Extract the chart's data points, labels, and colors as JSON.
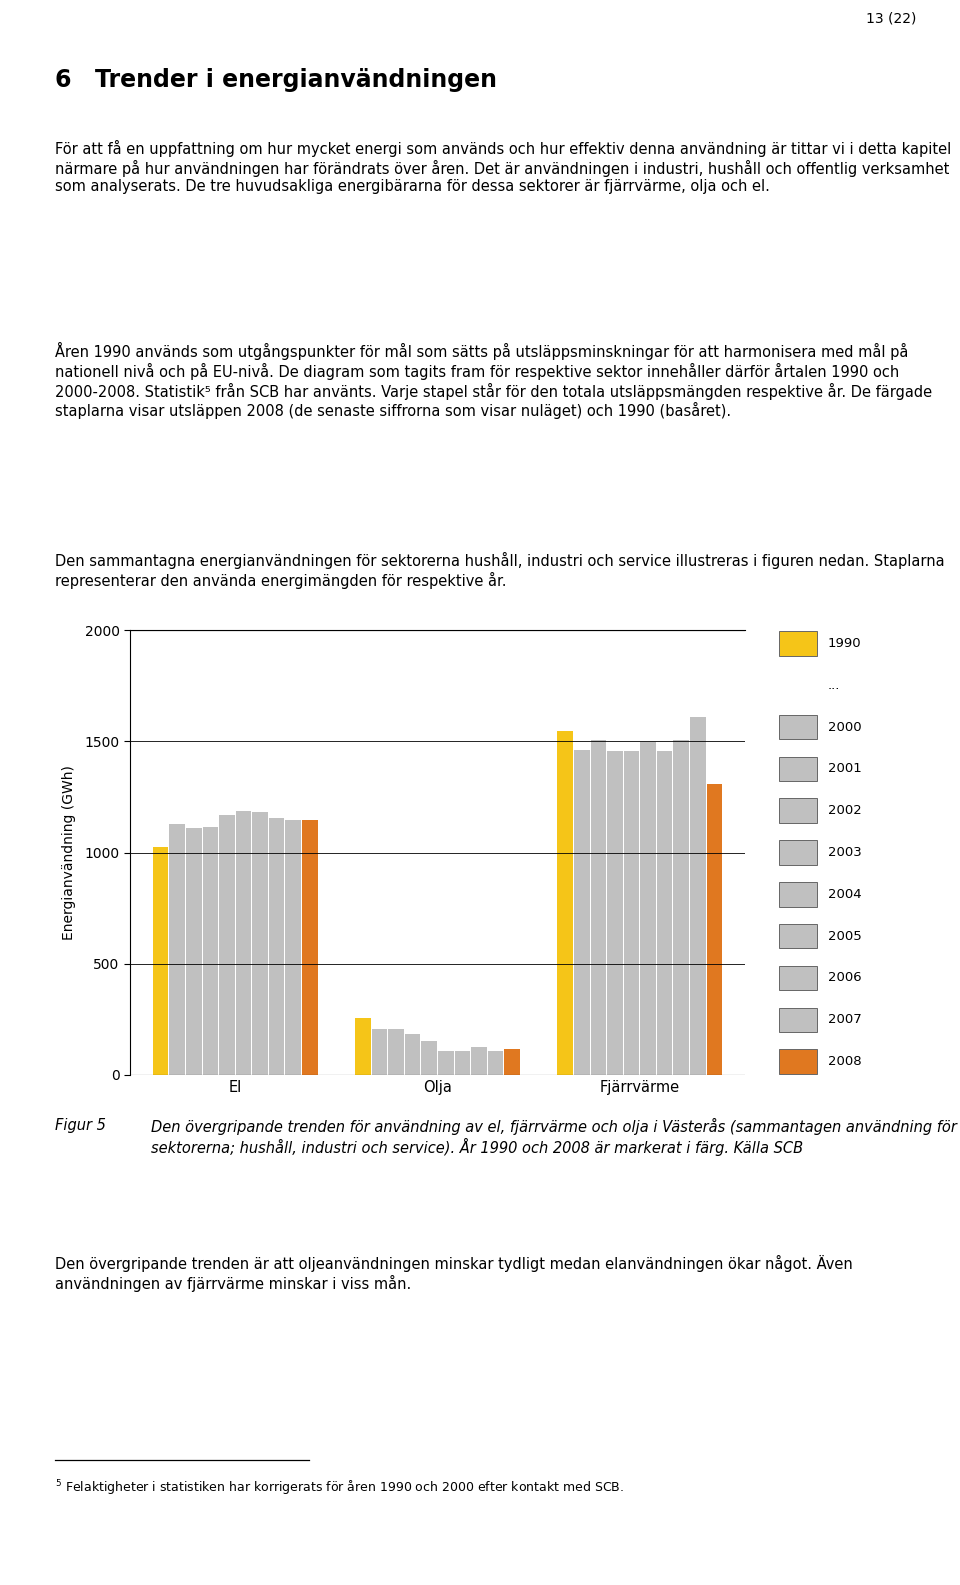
{
  "ylabel": "Energianvändning (GWh)",
  "ylim": [
    0,
    2000
  ],
  "yticks": [
    0,
    500,
    1000,
    1500,
    2000
  ],
  "groups": [
    "El",
    "Olja",
    "Fjärrvärme"
  ],
  "years": [
    "1990",
    "2000",
    "2001",
    "2002",
    "2003",
    "2004",
    "2005",
    "2006",
    "2007",
    "2008"
  ],
  "values": {
    "El": [
      1025,
      1130,
      1110,
      1115,
      1170,
      1185,
      1180,
      1155,
      1145,
      1145
    ],
    "Olja": [
      255,
      205,
      205,
      185,
      155,
      110,
      110,
      125,
      110,
      115
    ],
    "Fjärrvärme": [
      1545,
      1460,
      1505,
      1455,
      1455,
      1495,
      1455,
      1505,
      1610,
      1310
    ]
  },
  "colors": {
    "1990": "#F5C518",
    "2000": "#C0C0C0",
    "2001": "#C0C0C0",
    "2002": "#C0C0C0",
    "2003": "#C0C0C0",
    "2004": "#C0C0C0",
    "2005": "#C0C0C0",
    "2006": "#C0C0C0",
    "2007": "#C0C0C0",
    "2008": "#E07820"
  },
  "legend_entries": [
    "1990",
    "...",
    "2000",
    "2001",
    "2002",
    "2003",
    "2004",
    "2005",
    "2006",
    "2007",
    "2008"
  ],
  "legend_colors": [
    "#F5C518",
    null,
    "#C0C0C0",
    "#C0C0C0",
    "#C0C0C0",
    "#C0C0C0",
    "#C0C0C0",
    "#C0C0C0",
    "#C0C0C0",
    "#C0C0C0",
    "#E07820"
  ],
  "page_number": "13 (22)",
  "heading_number": "6",
  "heading_text": "Trender i energianvändningen",
  "body_text_1": "För att få en uppfattning om hur mycket energi som används och hur effektiv denna användning är tittar vi i detta kapitel närmare på hur användningen har förändrats över åren. Det är användningen i industri, hushåll och offentlig verksamhet som analyserats. De tre huvudsakliga energibärarna för dessa sektorer är fjärrvärme, olja och el.",
  "body_text_2": "Åren 1990 används som utgångspunkter för mål som sätts på utsläppsminskningar för att harmonisera med mål på nationell nivå och på EU-nivå. De diagram som tagits fram för respektive sektor innehåller därför årtalen 1990 och 2000-2008. Statistik⁵ från SCB har använts. Varje stapel står för den totala utsläppsmängden respektive år. De färgade staplarna visar utsläppen 2008 (de senaste siffrorna som visar nuläget) och 1990 (basåret).",
  "body_text_3": "Den sammantagna energianvändningen för sektorerna hushåll, industri och service illustreras i figuren nedan. Staplarna representerar den använda energimängden för respektive år.",
  "figur_label": "Figur 5",
  "figur_caption": "Den övergripande trenden för användning av el, fjärrvärme och olja i Västerås (sammantagen användning för sektorerna; hushåll, industri och service). År 1990 och 2008 är markerat i färg. Källa SCB",
  "body_text_4": "Den övergripande trenden är att oljeanvändningen minskar tydligt medan elanvändningen ökar något. Även användningen av fjärrvärme minskar i viss mån.",
  "footnote_marker": "5",
  "footnote": "Felaktigheter i statistiken har korrigerats för åren 1990 och 2000 efter kontakt med SCB.",
  "background_color": "#FFFFFF"
}
